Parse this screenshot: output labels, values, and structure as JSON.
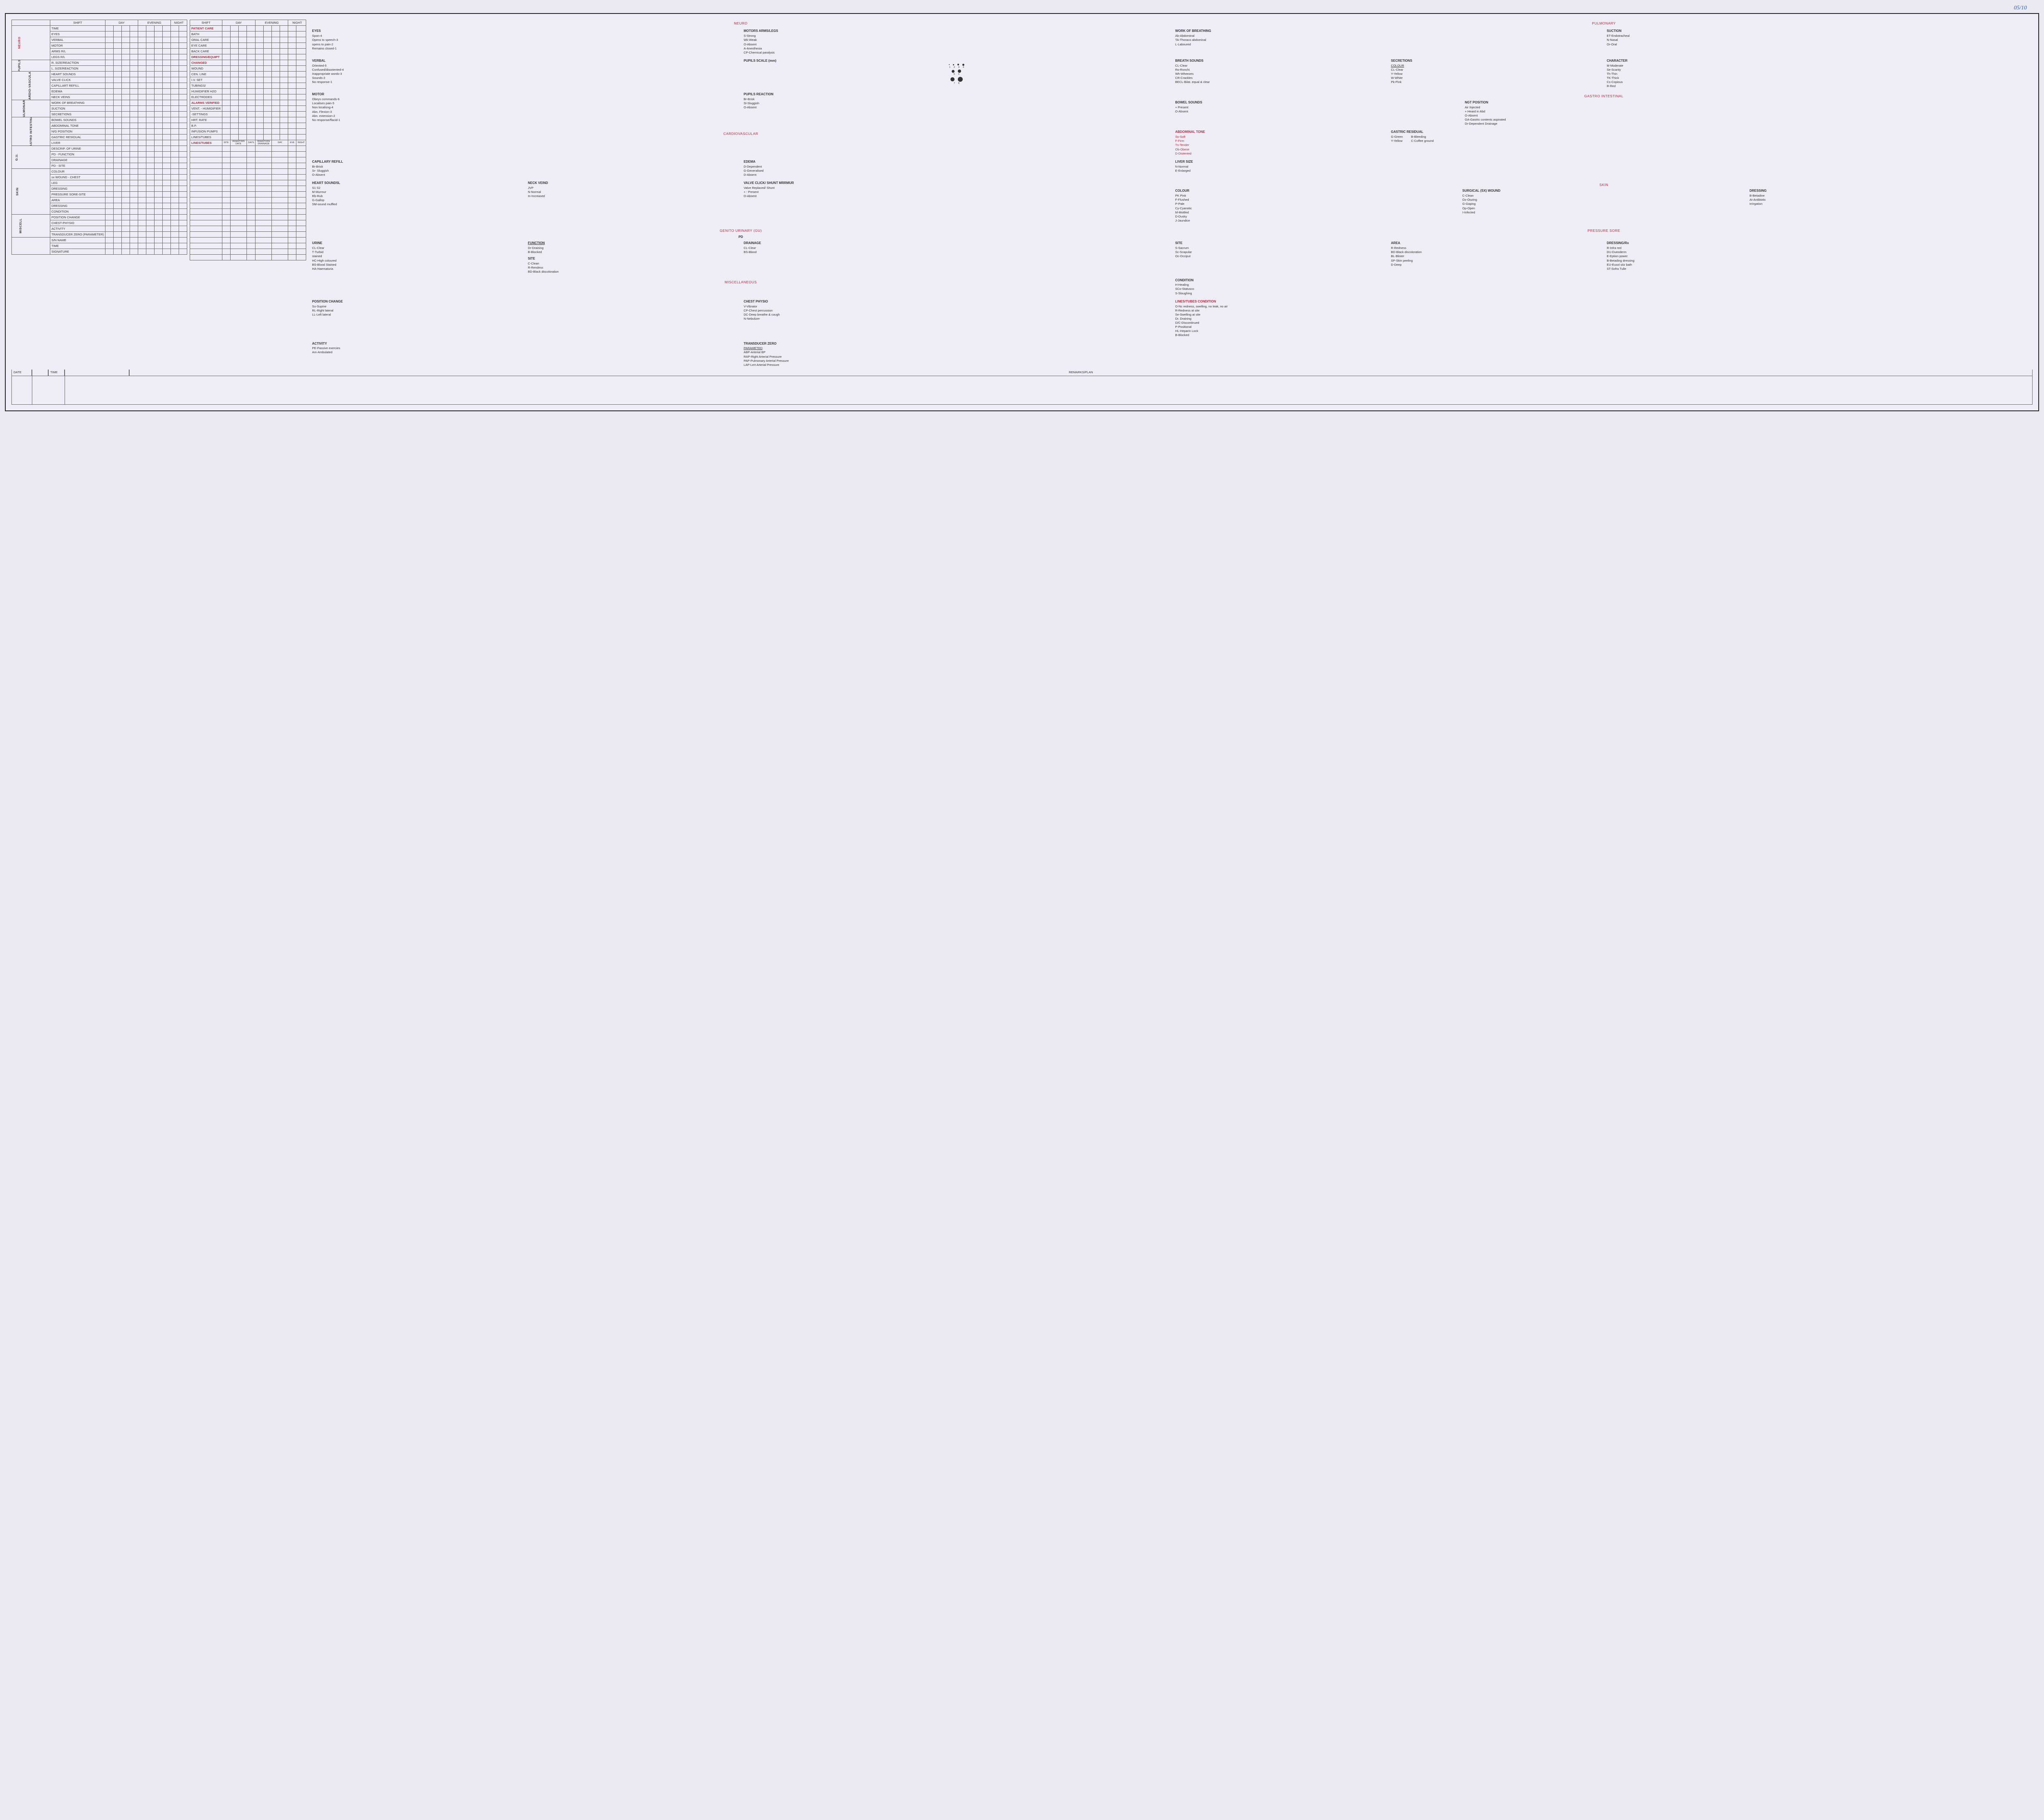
{
  "page_number": "05/10",
  "headers": [
    "SHIFT",
    "DAY",
    "EVENING",
    "NIGHT"
  ],
  "left_table": {
    "col_widths": {
      "vlabel": 12,
      "param": 78,
      "data": 20,
      "data_cols": 10
    },
    "sections": [
      {
        "label": "NEURO",
        "color": "#c4283d",
        "rows": [
          "TIME",
          "EYES",
          "VERBAL",
          "MOTOR",
          "ARMS R/L",
          "LEGS R/L"
        ],
        "span_header": true
      },
      {
        "label": "PUPILS",
        "rows": [
          "R. SIZE/REACTION",
          "L. SIZE/REACTION"
        ]
      },
      {
        "label": "CARDIO-VASCULAR",
        "rows": [
          "HEART SOUNDS",
          "VALVE CLICK",
          "CAPILLART REFILL",
          "EDEMA",
          "NECK VEINS"
        ]
      },
      {
        "label": "PULMONARY",
        "rows": [
          "WORK OF BREATHING",
          "SUCTION",
          "SECRETIONS"
        ]
      },
      {
        "label": "GASTRO INTESTINAL",
        "rows": [
          "BOWEL SOUNDS",
          "ABDOMINAL TONE",
          "N/G POSITION",
          "GASTRIC RESIDUAL",
          "LIVER"
        ]
      },
      {
        "label": "G.U.",
        "rows": [
          "DESCRIP. OF URINE",
          "PD -  FUNCTION",
          "          DRAINAGE",
          "PD - SITE"
        ]
      },
      {
        "label": "SKIN",
        "rows": [
          "COLOUR",
          "sx WOUND - CHEST",
          "           LEG",
          "DRESSING",
          "PRESSURE SORE-SITE",
          "AREA",
          "DRESSING",
          "CONDITION"
        ]
      },
      {
        "label": "MISCELL",
        "rows": [
          "POSITION CHANGE",
          "CHEST-PHYSIO",
          "ACTIVITY",
          "TRANSDUCER ZERO (PARAMETER)"
        ]
      },
      {
        "label": "",
        "rows": [
          "S/N NAME",
          "TIME",
          "SIGNATURE"
        ]
      }
    ]
  },
  "mid_table": {
    "rows_patient_care": [
      "BATH",
      "ORAL CARE",
      "EYE CARE",
      "BACK CARE"
    ],
    "rows_dressing": [
      "WOUND",
      "CEN. LINE",
      "I.V. SET",
      "TUBINGS/",
      "HUMIDIFIER H2O",
      "ELECTRODES"
    ],
    "rows_alarms": [
      "VENT. - HUMIDIFIER",
      "-SETTINGS",
      "HRT. RATE",
      "B.P.",
      "INFUSION PUMPS",
      "LINES/TUBES"
    ],
    "lines_headers": [
      "SITE",
      "INSERTION DATE",
      "DAYS",
      "INSERTION/ DRAINAGE",
      "DAY",
      "EVE",
      "NIGHT"
    ],
    "lines_rows": 20,
    "labels": {
      "patient_care": "PATIENT CARE",
      "dressing_equipt": "DRESSING/EQUIPT",
      "changed": "CHANGED",
      "alarms": "ALARMS VERIFIED",
      "lines_tubes": "LINES/TUBES"
    }
  },
  "bottom": {
    "date": "DATE",
    "time": "TIME",
    "remarks": "REMARKS/PLAN"
  },
  "ref": {
    "neuro": {
      "title": "NEURO",
      "eyes": {
        "h": "EYES",
        "items": [
          "Spon-4",
          "Opens to speech-3",
          "opens to pain-2",
          "Remains closed-1"
        ]
      },
      "verbal": {
        "h": "VERBAL",
        "items": [
          "Oriented-5",
          "Confused/disoriented-4",
          "Inappropriate words-3",
          "Sounds-2",
          "No response-1"
        ]
      },
      "motor": {
        "h": "MOTOR",
        "items": [
          "Obeys commands-6",
          "Localises pain-5",
          "Non localisng-4",
          "Abn. Flexion-3",
          "Abn. extension-2",
          "No response/flacid-1"
        ]
      },
      "motors_arms": {
        "h": "MOTORS ARMS/LEGS",
        "items": [
          "S-Strong",
          "Wk-Weak",
          "O-Absent",
          "A-Anesthesia",
          "CP-Chemical paralysis"
        ]
      },
      "pupils_scale": "PUPILS SCALE (mm)",
      "pupils_reaction": {
        "h": "PUPILS REACTION",
        "items": [
          "Br-Brisk",
          "Sl-Sluggish",
          "O-Absent"
        ]
      }
    },
    "cardio": {
      "title": "CARDIOVASCULAR",
      "cap_refill": {
        "h": "CAPILLARY REFILL",
        "items": [
          "Br-Brisk",
          "Sr- Sluggish",
          "O-Absent"
        ]
      },
      "heart_sounds": {
        "h": "HEART SOUNDSL",
        "items": [
          "S1 S2",
          "M-Murmur",
          "Rb-Rub",
          "G-Gallop",
          "SM-sound muffled"
        ]
      },
      "edema": {
        "h": "EDEMA",
        "items": [
          "D-Dependent",
          "G-Generalised",
          "D-Absent"
        ]
      },
      "neck_veind": {
        "h": "NECK VEIND",
        "items": [
          "JVP",
          "N-Normal",
          "In-Increased"
        ]
      },
      "valve": {
        "h": "VALVE CLICK/ SHUNT MRRMUR",
        "items": [
          "Valve Replaced/ Shunt",
          "+ : Present",
          "O-Absent"
        ]
      }
    },
    "gu": {
      "title": "GENITO URINARY (GU)",
      "pd": "PD",
      "urine": {
        "h": "URINE",
        "items": [
          "CL-Clear",
          "T-Turbid",
          "stained",
          "HC-High coloured",
          "BS-Blood Stained",
          "HA-Haematuria"
        ]
      },
      "function": {
        "h": "FUNCTION",
        "items": [
          "Dr-Draining",
          "B-Blocked"
        ]
      },
      "site": {
        "h": "SITE",
        "items": [
          "C-Clean",
          "R-Rendess",
          "BD-Black discoloration"
        ]
      },
      "drainage": {
        "h": "DRAINAGE",
        "items": [
          "CL-Clear",
          "BS-Blood"
        ]
      }
    },
    "misc": {
      "title": "MISCELLANEOUS",
      "pos_change": {
        "h": "POSITION CHANGE",
        "items": [
          "Su-Supine",
          "RL-Right lateral",
          "LL-Left lateral"
        ]
      },
      "chest_physio": {
        "h": "CHEST PHYSIO",
        "items": [
          "V-Vibrator",
          "CP-Chest percussion",
          "DC-Deep breathe & cough",
          "N-Nebulizer"
        ]
      },
      "activity": {
        "h": "ACTIVITY",
        "items": [
          "PE-Passive exercies",
          "Am-Ambulated"
        ]
      },
      "transducer": {
        "h": "TRANSDUCER ZERO",
        "sub": "PARAMETED",
        "items": [
          "ABP-Arterial BP",
          "RAP-Right Arterial Pressure",
          "PAP-Pulmonary Arterial Pressure",
          "LAP-Lert Arterial Pressure"
        ]
      }
    },
    "pulmonary": {
      "title": "PULMONARY",
      "wob": {
        "h": "WORK OF BREATHING",
        "items": [
          "Ab-Abdominal",
          "TA-Thoraco abdominal",
          "L-Laboured"
        ]
      },
      "suction": {
        "h": "SUCTION",
        "items": [
          "ET-Endotracheal",
          "N-Nasal",
          "Or-Oral"
        ]
      },
      "breath": {
        "h": "BREATH SOUNDS",
        "items": [
          "CL-Clear",
          "Ro-Ronchi",
          "Wh-Wheezes",
          "CR-Crackles",
          "BECL-Bilat. equal & clear"
        ]
      },
      "secretions": {
        "h": "SECRETIONS",
        "sub": "COLOUR",
        "items": [
          "CL-Clear",
          "Y-Yellow",
          "W-White",
          "Pk-Pink"
        ]
      },
      "character": {
        "h": "CHARACTER",
        "items": [
          "M-Moderate",
          "Se-Scanty",
          "Th-Thin",
          "TK-Thick",
          "Cs-Copious",
          "R-Red"
        ]
      }
    },
    "gi": {
      "title": "GASTRO INTESTINAL",
      "bowel": {
        "h": "BOWEL SOUNDS",
        "items": [
          "+ Present",
          "O-Absent"
        ]
      },
      "ngt": {
        "h": "NGT POSITION",
        "items": [
          "Air Injected",
          "+ Heard in Abd",
          "O-Absent",
          "GA-Gastric contents aspirated",
          "Dr-Dependent Drainage"
        ]
      },
      "abd_tone": {
        "h": "ABDOMINAL TONE",
        "items": [
          "So-Soft",
          "F-Firm",
          "Tn-Tender",
          "Ob-Obese",
          "D-Distented"
        ]
      },
      "gastric_res": {
        "h": "GASTRIC RESIDUAL",
        "items": [
          "G-Green",
          "Y-Yellow"
        ],
        "items2": [
          "B-Bleeding",
          "C-Coffee ground"
        ]
      },
      "liver": {
        "h": "LIVER SIZE",
        "items": [
          "N-Normal",
          "E-Enlarged"
        ]
      }
    },
    "skin": {
      "title": "SKIN",
      "colour": {
        "h": "COLOUR",
        "items": [
          "PK Pink",
          "F-Flushed",
          "P-Pale",
          "Cy-Cyanotic",
          "M-Mottled",
          "D-Dusky",
          "J-Jaundice"
        ]
      },
      "sx_wound": {
        "h": "SURGICAL (SX) WOUND",
        "items": [
          "C-Clean",
          "Oz-Oozing",
          "G-Gaping",
          "Op-Open",
          "I-Infected"
        ]
      },
      "dressing": {
        "h": "DRESSING",
        "items": [
          "B-Betadine",
          "At-Antibiotic",
          "Irrirgation"
        ]
      }
    },
    "pressure_sore": {
      "title": "PRESSURE SORE",
      "site": {
        "h": "SITE",
        "items": [
          "S-Sacrum",
          "Sc-Scapular",
          "Oc-Occiput"
        ]
      },
      "area": {
        "h": "AREA",
        "items": [
          "R-Redness",
          "BD-Black discoloration",
          "BL-Blister",
          "SP-Skin peeling",
          "D-Deep"
        ]
      },
      "dressing_rx": {
        "h": "DRESSING/Rx",
        "items": [
          "R-Infra red",
          "DU-Dueoderm",
          "E-Eption power",
          "B-Betading dressing",
          "EU-Eusol sitz bath",
          "ST-Sofra   Tulle"
        ]
      },
      "condition": {
        "h": "CONDITION",
        "items": [
          "H-Healing",
          "SCo-Statusco",
          "S-Sloughing"
        ]
      }
    },
    "lines_tubes": {
      "title": "LINES/TUBES CONDITION",
      "items": [
        "O-Nc redness, swelling, no leak, no air",
        "R-Redness at site",
        "Se-Swelling at site",
        "Dr. Draining",
        "D/C-Discontinued",
        "P-Positional",
        "HL-Heparin Lock",
        "B-Blocked"
      ]
    }
  }
}
